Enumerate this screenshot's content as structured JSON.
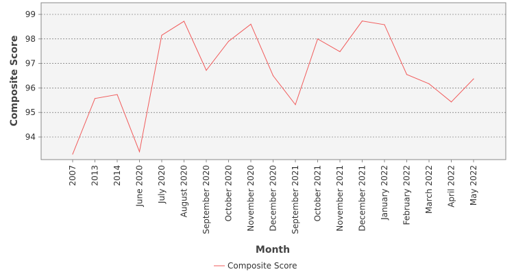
{
  "chart_data": {
    "type": "line",
    "title": "",
    "xlabel": "Month",
    "ylabel": "Composite Score",
    "categories": [
      "2007",
      "2013",
      "2014",
      "June 2020",
      "July 2020",
      "August 2020",
      "September 2020",
      "October 2020",
      "November 2020",
      "December 2020",
      "September 2021",
      "October 2021",
      "November 2021",
      "December 2021",
      "January 2022",
      "February 2022",
      "March 2022",
      "April 2022",
      "May 2022"
    ],
    "series": [
      {
        "name": "Composite Score",
        "color": "#f15a5a",
        "values": [
          93.3,
          95.57,
          95.73,
          93.4,
          98.15,
          98.72,
          96.72,
          97.9,
          98.6,
          96.5,
          95.32,
          98.0,
          97.48,
          98.73,
          98.58,
          96.55,
          96.17,
          95.43,
          96.37
        ]
      }
    ],
    "ylim": [
      93.0,
      99.2
    ],
    "yticks": [
      94,
      95,
      96,
      97,
      98,
      99
    ],
    "grid": true,
    "legend": "bottom-center",
    "plot_background": "#f4f4f4"
  }
}
